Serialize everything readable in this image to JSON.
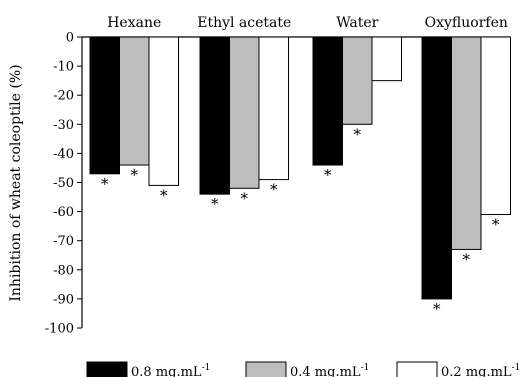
{
  "chart_data": {
    "type": "bar",
    "ylabel": "Inhibition of wheat coleoptile (%)",
    "ylim": [
      -100,
      0
    ],
    "yticks": [
      "0",
      "-10",
      "-20",
      "-30",
      "-40",
      "-50",
      "-60",
      "-70",
      "-80",
      "-90",
      "-100"
    ],
    "ytick_values": [
      0,
      -10,
      -20,
      -30,
      -40,
      -50,
      -60,
      -70,
      -80,
      -90,
      -100
    ],
    "categories": [
      "Hexane",
      "Ethyl acetate",
      "Water",
      "Oxyfluorfen"
    ],
    "series": [
      {
        "name": "0.8 mg.mL",
        "sup": "-1",
        "color": "#000000",
        "values": [
          -47,
          -54,
          -44,
          -90
        ]
      },
      {
        "name": "0.4 mg.mL",
        "sup": "-1",
        "color": "#bdbdbd",
        "values": [
          -44,
          -52,
          -30,
          -73
        ]
      },
      {
        "name": "0.2 mg.mL",
        "sup": "-1",
        "color": "#ffffff",
        "values": [
          -51,
          -49,
          -15,
          -61
        ]
      }
    ],
    "significance": [
      [
        true,
        true,
        true,
        true
      ],
      [
        true,
        true,
        true,
        true
      ],
      [
        true,
        true,
        false,
        true
      ]
    ],
    "significance_marker": "*",
    "legend_position": "bottom",
    "grid": false
  }
}
